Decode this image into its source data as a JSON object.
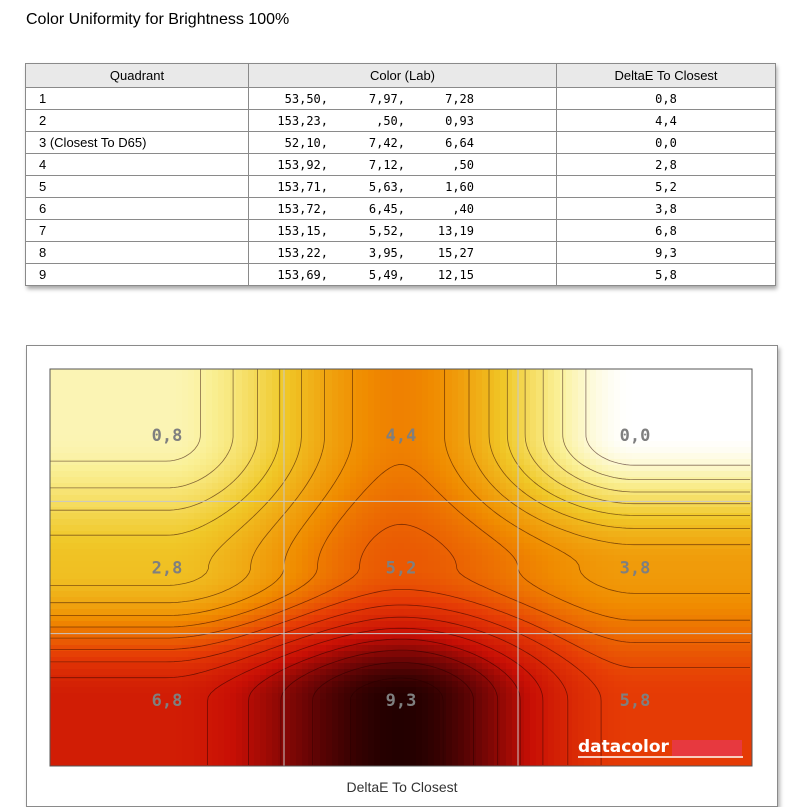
{
  "page": {
    "title": "Color Uniformity for Brightness 100%"
  },
  "table": {
    "headers": [
      "Quadrant",
      "Color (Lab)",
      "DeltaE To Closest"
    ],
    "rows": [
      {
        "quadrant": "1",
        "lab": [
          "53,50,",
          "7,97,",
          "7,28"
        ],
        "delta": "0,8"
      },
      {
        "quadrant": "2",
        "lab": [
          "153,23,",
          ",50,",
          "0,93"
        ],
        "delta": "4,4"
      },
      {
        "quadrant": "3 (Closest To D65)",
        "lab": [
          "52,10,",
          "7,42,",
          "6,64"
        ],
        "delta": "0,0"
      },
      {
        "quadrant": "4",
        "lab": [
          "153,92,",
          "7,12,",
          ",50"
        ],
        "delta": "2,8"
      },
      {
        "quadrant": "5",
        "lab": [
          "153,71,",
          "5,63,",
          "1,60"
        ],
        "delta": "5,2"
      },
      {
        "quadrant": "6",
        "lab": [
          "153,72,",
          "6,45,",
          ",40"
        ],
        "delta": "3,8"
      },
      {
        "quadrant": "7",
        "lab": [
          "153,15,",
          "5,52,",
          "13,19"
        ],
        "delta": "6,8"
      },
      {
        "quadrant": "8",
        "lab": [
          "153,22,",
          "3,95,",
          "15,27"
        ],
        "delta": "9,3"
      },
      {
        "quadrant": "9",
        "lab": [
          "153,69,",
          "5,49,",
          "12,15"
        ],
        "delta": "5,8"
      }
    ]
  },
  "chart_data": {
    "type": "heatmap",
    "title": "",
    "xlabel": "DeltaE To Closest",
    "ylabel": "",
    "grid": [
      [
        "0,8",
        "4,4",
        "0,0"
      ],
      [
        "2,8",
        "5,2",
        "3,8"
      ],
      [
        "6,8",
        "9,3",
        "5,8"
      ]
    ],
    "values": [
      [
        0.8,
        4.4,
        0.0
      ],
      [
        2.8,
        5.2,
        3.8
      ],
      [
        6.8,
        9.3,
        5.8
      ]
    ],
    "color_scale": [
      "#ffffff",
      "#f3e06a",
      "#f0a000",
      "#e02a00",
      "#2a0000"
    ],
    "gridlines": true,
    "logo": "datacolor",
    "logo_accent": "#e8394a"
  }
}
